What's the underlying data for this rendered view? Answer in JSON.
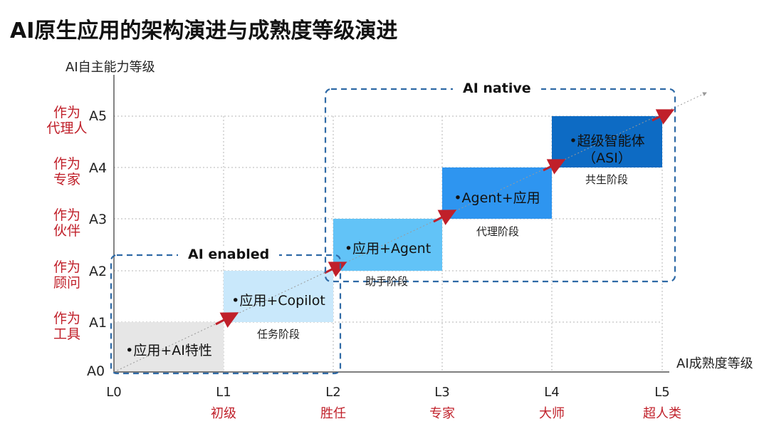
{
  "title": "AI原生应用的架构演进与成熟度等级演进",
  "axes": {
    "y_title": "AI自主能力等级",
    "x_title": "AI成熟度等级",
    "a_levels": [
      "A0",
      "A1",
      "A2",
      "A3",
      "A4",
      "A5"
    ],
    "l_levels": [
      "L0",
      "L1",
      "L2",
      "L3",
      "L4",
      "L5"
    ]
  },
  "roles": [
    {
      "line1": "作为",
      "line2": "工具"
    },
    {
      "line1": "作为",
      "line2": "顾问"
    },
    {
      "line1": "作为",
      "line2": "伙伴"
    },
    {
      "line1": "作为",
      "line2": "专家"
    },
    {
      "line1": "作为",
      "line2": "代理人"
    }
  ],
  "maturity_names": [
    "初级",
    "胜任",
    "专家",
    "大师",
    "超人类"
  ],
  "blocks": [
    {
      "text": "•应用+AI特性",
      "stage": "",
      "color": "#e6e6e6"
    },
    {
      "text": "•应用+Copilot",
      "stage": "任务阶段",
      "color": "#c9e8fb"
    },
    {
      "text": "•应用+Agent",
      "stage": "助手阶段",
      "color": "#62c3f7"
    },
    {
      "text": "•Agent+应用",
      "stage": "代理阶段",
      "color": "#2e95f0"
    },
    {
      "text_line1": "•超级智能体",
      "text_line2": "（ASI）",
      "stage": "共生阶段",
      "color": "#0d6bc4"
    }
  ],
  "groups": {
    "enabled": "AI enabled",
    "native": "AI native"
  },
  "colors": {
    "role_text": "#c0202a",
    "arrow": "#c0202a",
    "dashed_box": "#2f6aa6"
  }
}
